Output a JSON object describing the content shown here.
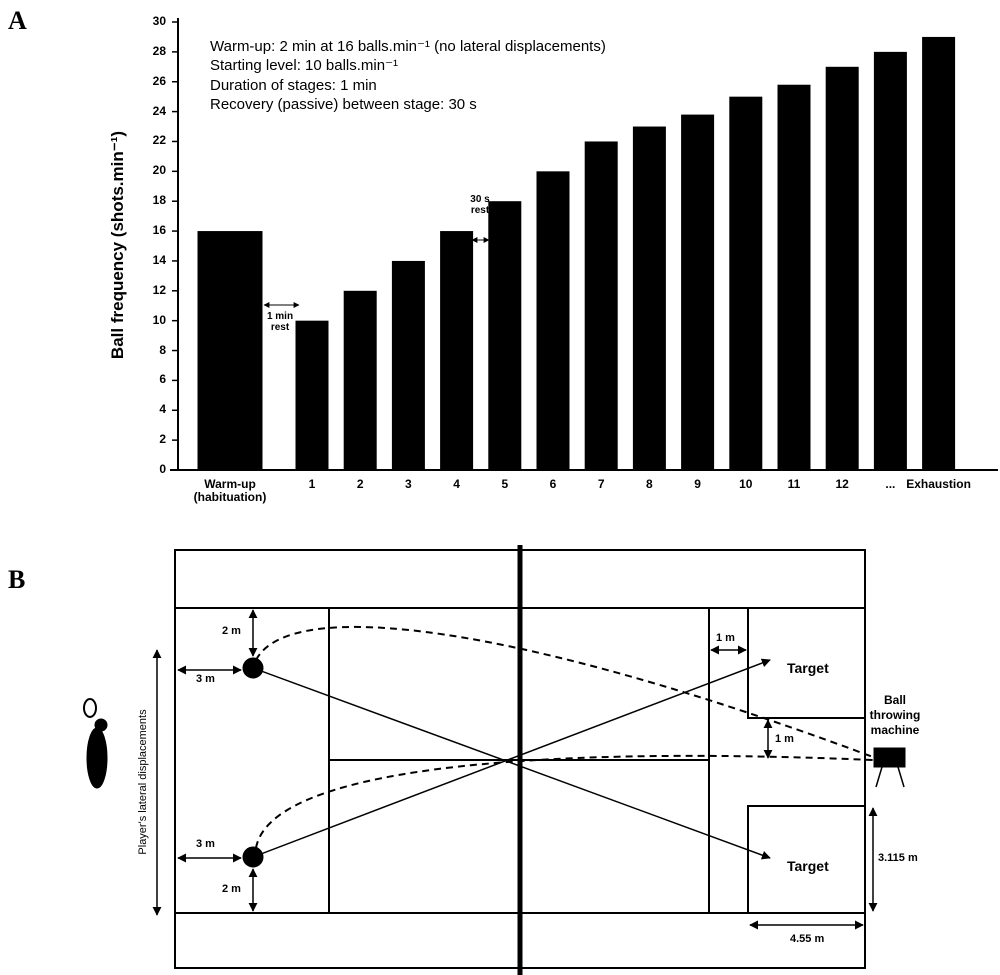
{
  "panel_labels": [
    "A",
    "B"
  ],
  "chart_data": {
    "type": "bar",
    "y_label": "Ball frequency (shots.min⁻¹)",
    "categories": [
      "Warm-up\n(habituation)",
      "1",
      "2",
      "3",
      "4",
      "5",
      "6",
      "7",
      "8",
      "9",
      "10",
      "11",
      "12",
      "...",
      "Exhaustion"
    ],
    "values": [
      16,
      10,
      12,
      14,
      16,
      18,
      20,
      22,
      23,
      23.8,
      25,
      25.8,
      27,
      28,
      29
    ],
    "color": "#000000",
    "ylim": [
      0,
      30
    ],
    "yticks": [
      0,
      2,
      4,
      6,
      8,
      10,
      12,
      14,
      16,
      18,
      20,
      22,
      24,
      26,
      28,
      30
    ],
    "text_box": [
      "Warm-up: 2 min at 16 balls.min⁻¹ (no lateral displacements)",
      "Starting level: 10 balls.min⁻¹",
      "Duration of stages: 1 min",
      "Recovery (passive) between stage: 30 s"
    ],
    "rest_annotations": [
      "1 min\nrest",
      "30 s\nrest"
    ]
  },
  "diagram": {
    "distances": [
      "2 m",
      "3 m",
      "3 m",
      "2 m",
      "1 m",
      "1 m",
      "3.115 m",
      "4.55 m"
    ],
    "targets": [
      "Target",
      "Target"
    ],
    "machine": "Ball\nthrowing\nmachine",
    "player_axis": "Player's lateral displacements"
  }
}
